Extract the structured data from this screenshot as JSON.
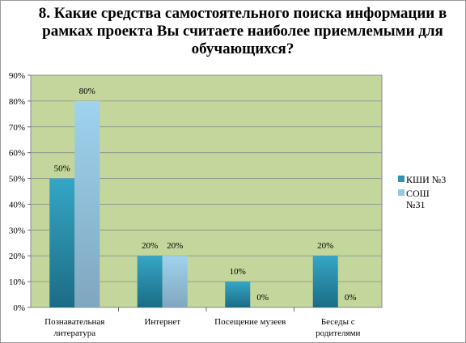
{
  "chart_data": {
    "type": "bar",
    "title": "8. Какие средства самостоятельного поиска информации в рамках проекта Вы считаете наиболее приемлемыми для обучающихся?",
    "categories": [
      [
        "Познавательная",
        "литература"
      ],
      [
        "Интернет"
      ],
      [
        "Посещение музеев"
      ],
      [
        "Беседы с",
        "родителями"
      ]
    ],
    "series": [
      {
        "name": "КШИ  №3",
        "values": [
          50,
          20,
          10,
          20
        ],
        "labels": [
          "50%",
          "20%",
          "10%",
          "20%"
        ],
        "color": "#2e93b3",
        "legend_lines": [
          "КШИ  №3"
        ]
      },
      {
        "name": "СОШ №31",
        "values": [
          80,
          20,
          0,
          0
        ],
        "labels": [
          "80%",
          "20%",
          "0%",
          "0%"
        ],
        "color": "#93c9e3",
        "legend_lines": [
          "СОШ",
          "№31"
        ]
      }
    ],
    "ylim": [
      0,
      90
    ],
    "yticks": [
      "0%",
      "10%",
      "20%",
      "30%",
      "40%",
      "50%",
      "60%",
      "70%",
      "80%",
      "90%"
    ],
    "plot_background": "#c3d69b",
    "grid": true,
    "legend": "right"
  }
}
